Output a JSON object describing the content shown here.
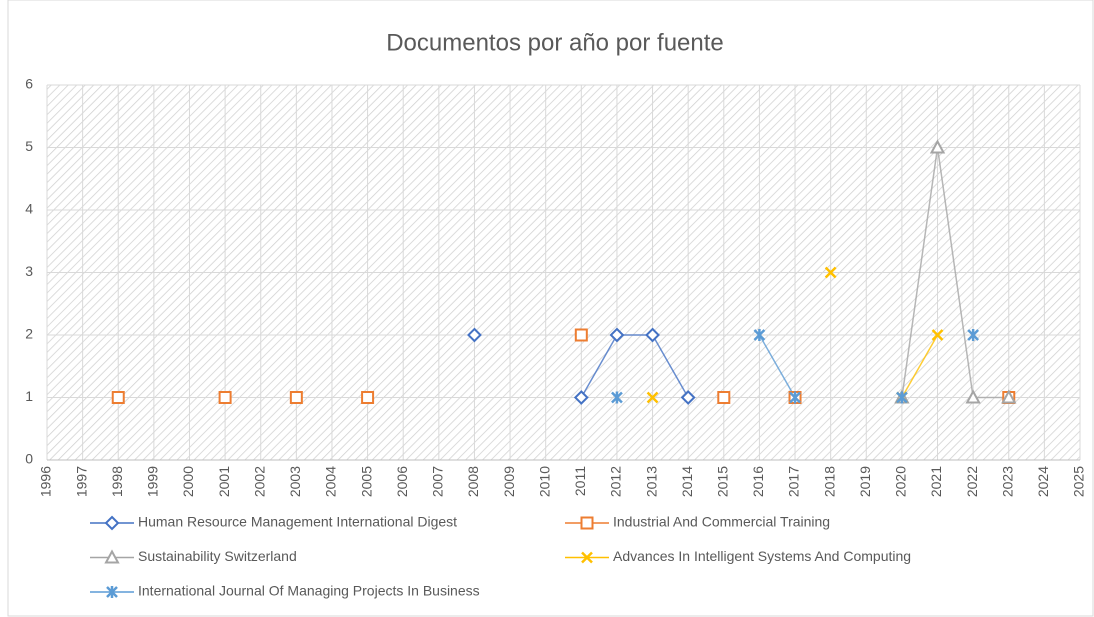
{
  "chart_data": {
    "type": "line",
    "title": "Documentos por año por fuente",
    "categories": [
      "1996",
      "1997",
      "1998",
      "1999",
      "2000",
      "2001",
      "2002",
      "2003",
      "2004",
      "2005",
      "2006",
      "2007",
      "2008",
      "2009",
      "2010",
      "2011",
      "2012",
      "2013",
      "2014",
      "2015",
      "2016",
      "2017",
      "2018",
      "2019",
      "2020",
      "2021",
      "2022",
      "2023",
      "2024",
      "2025"
    ],
    "ylim": [
      0,
      6
    ],
    "yticks": [
      0,
      1,
      2,
      3,
      4,
      5,
      6
    ],
    "grid": true,
    "series": [
      {
        "name": "Human Resource Management International Digest",
        "color": "#4472c4",
        "marker": "diamond",
        "values": [
          null,
          null,
          null,
          null,
          null,
          null,
          null,
          null,
          null,
          null,
          null,
          null,
          2,
          null,
          null,
          1,
          2,
          2,
          1,
          null,
          null,
          null,
          null,
          null,
          null,
          null,
          null,
          null,
          null,
          null
        ]
      },
      {
        "name": "Industrial And Commercial Training",
        "color": "#ed7d31",
        "marker": "square",
        "values": [
          null,
          null,
          1,
          null,
          null,
          1,
          null,
          1,
          null,
          1,
          null,
          null,
          null,
          null,
          null,
          2,
          null,
          null,
          null,
          1,
          null,
          1,
          null,
          null,
          null,
          null,
          null,
          1,
          null,
          null
        ]
      },
      {
        "name": "Sustainability Switzerland",
        "color": "#a5a5a5",
        "marker": "triangle",
        "values": [
          null,
          null,
          null,
          null,
          null,
          null,
          null,
          null,
          null,
          null,
          null,
          null,
          null,
          null,
          null,
          null,
          null,
          null,
          null,
          null,
          null,
          null,
          null,
          null,
          1,
          5,
          1,
          1,
          null,
          null
        ]
      },
      {
        "name": "Advances In Intelligent Systems And Computing",
        "color": "#ffc000",
        "marker": "x",
        "values": [
          null,
          null,
          null,
          null,
          null,
          null,
          null,
          null,
          null,
          null,
          null,
          null,
          null,
          null,
          null,
          null,
          null,
          1,
          null,
          null,
          null,
          null,
          3,
          null,
          1,
          2,
          null,
          null,
          null,
          null
        ]
      },
      {
        "name": "International Journal Of Managing Projects In Business",
        "color": "#5b9bd5",
        "marker": "star",
        "values": [
          null,
          null,
          null,
          null,
          null,
          null,
          null,
          null,
          null,
          null,
          null,
          null,
          null,
          null,
          null,
          null,
          1,
          null,
          null,
          null,
          2,
          1,
          null,
          null,
          1,
          null,
          2,
          null,
          null,
          null
        ]
      }
    ]
  }
}
